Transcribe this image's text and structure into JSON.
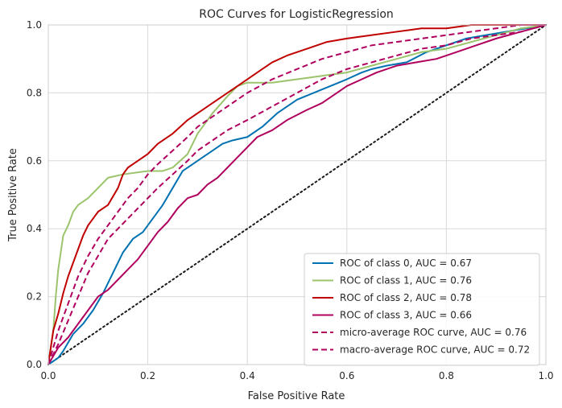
{
  "chart_data": {
    "type": "line",
    "title": "ROC Curves for LogisticRegression",
    "xlabel": "False Positive Rate",
    "ylabel": "True Positive Rate",
    "xlim": [
      0,
      1
    ],
    "ylim": [
      0,
      1
    ],
    "xticks": [
      "0.0",
      "0.2",
      "0.4",
      "0.6",
      "0.8",
      "1.0"
    ],
    "yticks": [
      "0.0",
      "0.2",
      "0.4",
      "0.6",
      "0.8",
      "1.0"
    ],
    "grid": true,
    "legend_position": "lower-right",
    "series": [
      {
        "name": "ROC of class 0, AUC = 0.67",
        "color": "#0072b2",
        "dash": "solid",
        "x": [
          0.0,
          0.01,
          0.02,
          0.03,
          0.05,
          0.07,
          0.09,
          0.11,
          0.13,
          0.15,
          0.17,
          0.19,
          0.21,
          0.23,
          0.25,
          0.27,
          0.29,
          0.31,
          0.33,
          0.35,
          0.37,
          0.4,
          0.43,
          0.46,
          0.5,
          0.55,
          0.6,
          0.63,
          0.65,
          0.68,
          0.72,
          0.76,
          0.8,
          0.84,
          0.88,
          0.92,
          0.96,
          1.0
        ],
        "y": [
          0.0,
          0.01,
          0.02,
          0.04,
          0.09,
          0.12,
          0.16,
          0.21,
          0.27,
          0.33,
          0.37,
          0.39,
          0.43,
          0.47,
          0.52,
          0.57,
          0.59,
          0.61,
          0.63,
          0.65,
          0.66,
          0.67,
          0.7,
          0.74,
          0.78,
          0.81,
          0.84,
          0.86,
          0.87,
          0.88,
          0.89,
          0.92,
          0.94,
          0.96,
          0.97,
          0.98,
          0.99,
          1.0
        ]
      },
      {
        "name": "ROC of class 1, AUC = 0.76",
        "color": "#9bc46c",
        "dash": "solid",
        "x": [
          0.0,
          0.01,
          0.015,
          0.02,
          0.03,
          0.04,
          0.05,
          0.06,
          0.08,
          0.1,
          0.12,
          0.15,
          0.2,
          0.23,
          0.25,
          0.28,
          0.3,
          0.33,
          0.36,
          0.38,
          0.4,
          0.45,
          0.5,
          0.55,
          0.6,
          0.65,
          0.7,
          0.75,
          0.8,
          0.85,
          0.9,
          0.95,
          1.0
        ],
        "y": [
          0.0,
          0.1,
          0.2,
          0.28,
          0.38,
          0.41,
          0.45,
          0.47,
          0.49,
          0.52,
          0.55,
          0.56,
          0.57,
          0.57,
          0.58,
          0.62,
          0.68,
          0.74,
          0.79,
          0.82,
          0.83,
          0.83,
          0.84,
          0.85,
          0.86,
          0.88,
          0.9,
          0.92,
          0.93,
          0.95,
          0.97,
          0.99,
          1.0
        ]
      },
      {
        "name": "ROC of class 2, AUC = 0.78",
        "color": "#c00000",
        "dash": "solid",
        "x": [
          0.0,
          0.01,
          0.02,
          0.03,
          0.04,
          0.05,
          0.06,
          0.07,
          0.08,
          0.09,
          0.1,
          0.12,
          0.14,
          0.15,
          0.16,
          0.18,
          0.2,
          0.22,
          0.25,
          0.28,
          0.3,
          0.33,
          0.36,
          0.4,
          0.43,
          0.45,
          0.48,
          0.52,
          0.56,
          0.6,
          0.65,
          0.7,
          0.75,
          0.8,
          0.85,
          0.9,
          1.0
        ],
        "y": [
          0.0,
          0.1,
          0.15,
          0.21,
          0.26,
          0.3,
          0.34,
          0.38,
          0.41,
          0.43,
          0.45,
          0.47,
          0.52,
          0.56,
          0.58,
          0.6,
          0.62,
          0.65,
          0.68,
          0.72,
          0.74,
          0.77,
          0.8,
          0.84,
          0.87,
          0.89,
          0.91,
          0.93,
          0.95,
          0.96,
          0.97,
          0.98,
          0.99,
          0.99,
          1.0,
          1.0,
          1.0
        ]
      },
      {
        "name": "ROC of class 3, AUC = 0.66",
        "color": "#b0005e",
        "dash": "solid",
        "x": [
          0.0,
          0.02,
          0.04,
          0.06,
          0.08,
          0.1,
          0.12,
          0.14,
          0.16,
          0.18,
          0.2,
          0.22,
          0.24,
          0.26,
          0.28,
          0.3,
          0.32,
          0.34,
          0.36,
          0.38,
          0.4,
          0.42,
          0.45,
          0.48,
          0.52,
          0.55,
          0.58,
          0.6,
          0.63,
          0.66,
          0.7,
          0.74,
          0.78,
          0.82,
          0.86,
          0.9,
          0.95,
          1.0
        ],
        "y": [
          0.0,
          0.05,
          0.08,
          0.12,
          0.16,
          0.2,
          0.22,
          0.25,
          0.28,
          0.31,
          0.35,
          0.39,
          0.42,
          0.46,
          0.49,
          0.5,
          0.53,
          0.55,
          0.58,
          0.61,
          0.64,
          0.67,
          0.69,
          0.72,
          0.75,
          0.77,
          0.8,
          0.82,
          0.84,
          0.86,
          0.88,
          0.89,
          0.9,
          0.92,
          0.94,
          0.96,
          0.98,
          1.0
        ]
      },
      {
        "name": "micro-average ROC curve, AUC = 0.76",
        "color": "#b0005e",
        "dash": "dashed",
        "x": [
          0.0,
          0.02,
          0.04,
          0.06,
          0.08,
          0.1,
          0.12,
          0.14,
          0.16,
          0.18,
          0.2,
          0.22,
          0.25,
          0.28,
          0.3,
          0.33,
          0.36,
          0.4,
          0.45,
          0.5,
          0.55,
          0.6,
          0.65,
          0.7,
          0.75,
          0.8,
          0.85,
          0.9,
          0.95,
          1.0
        ],
        "y": [
          0.0,
          0.1,
          0.18,
          0.26,
          0.32,
          0.37,
          0.41,
          0.45,
          0.49,
          0.52,
          0.56,
          0.59,
          0.63,
          0.67,
          0.7,
          0.73,
          0.76,
          0.8,
          0.84,
          0.87,
          0.9,
          0.92,
          0.94,
          0.95,
          0.96,
          0.97,
          0.98,
          0.99,
          1.0,
          1.0
        ]
      },
      {
        "name": "macro-average ROC curve, AUC = 0.72",
        "color": "#b0005e",
        "dash": "dashed",
        "x": [
          0.0,
          0.02,
          0.04,
          0.06,
          0.08,
          0.1,
          0.12,
          0.14,
          0.16,
          0.18,
          0.2,
          0.22,
          0.25,
          0.28,
          0.3,
          0.33,
          0.36,
          0.4,
          0.45,
          0.5,
          0.55,
          0.6,
          0.65,
          0.7,
          0.75,
          0.8,
          0.85,
          0.9,
          0.95,
          1.0
        ],
        "y": [
          0.0,
          0.06,
          0.13,
          0.2,
          0.27,
          0.32,
          0.37,
          0.4,
          0.43,
          0.46,
          0.49,
          0.52,
          0.56,
          0.6,
          0.63,
          0.66,
          0.69,
          0.72,
          0.76,
          0.8,
          0.84,
          0.87,
          0.89,
          0.91,
          0.93,
          0.94,
          0.96,
          0.97,
          0.98,
          1.0
        ]
      },
      {
        "name": "",
        "color": "#1a1a1a",
        "dash": "dotted",
        "x": [
          0.0,
          1.0
        ],
        "y": [
          0.0,
          1.0
        ]
      }
    ]
  }
}
